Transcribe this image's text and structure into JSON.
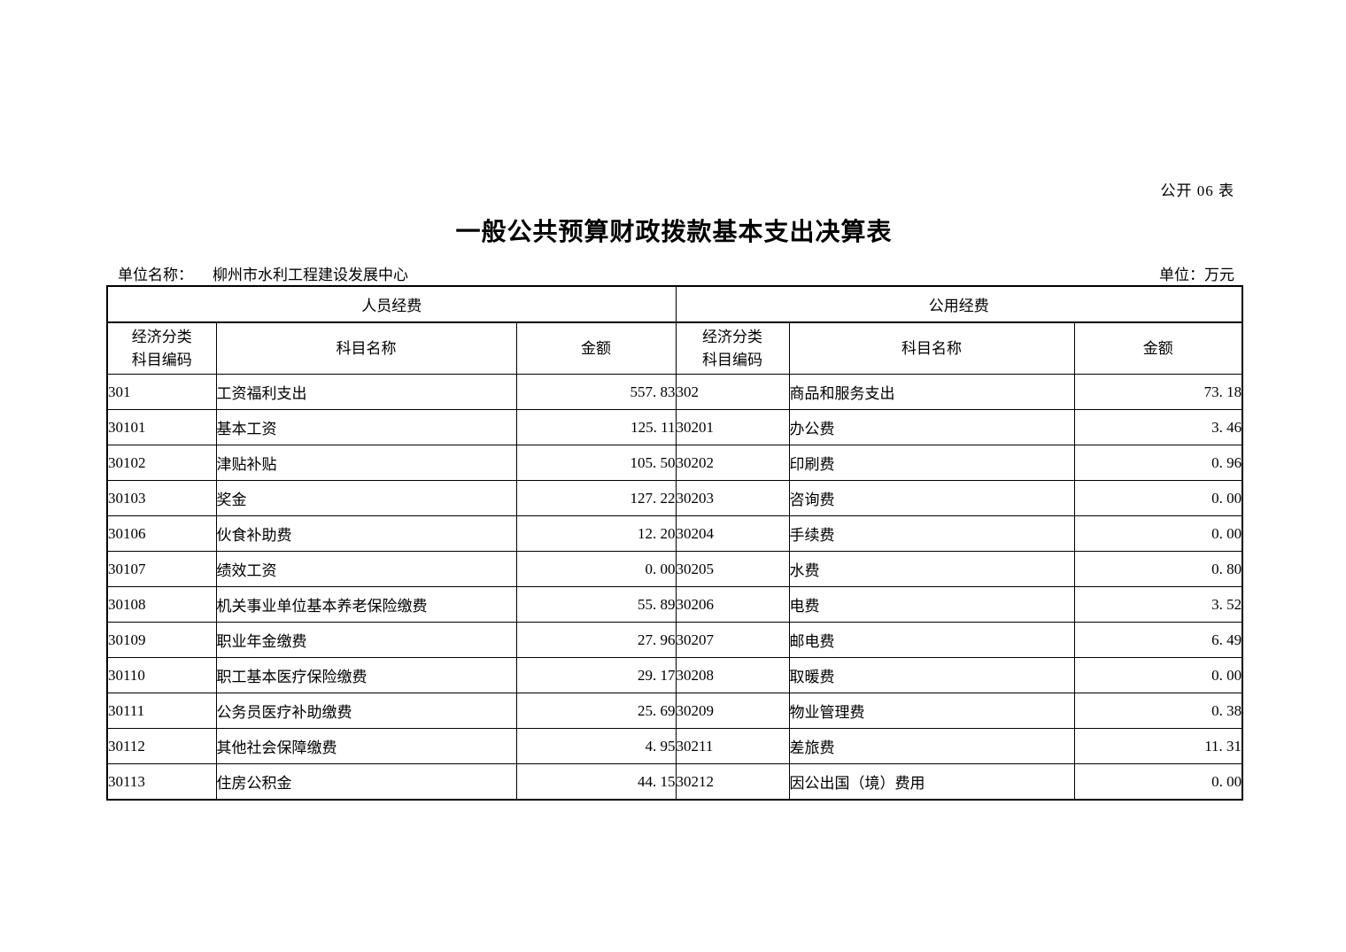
{
  "page": {
    "form_label": "公开 06 表",
    "title": "一般公共预算财政拨款基本支出决算表",
    "unit_name_label": "单位名称：",
    "unit_name_value": "柳州市水利工程建设发展中心",
    "unit_label": "单位：万元"
  },
  "table": {
    "groups": {
      "left": "人员经费",
      "right": "公用经费"
    },
    "headers": {
      "code_line1": "经济分类",
      "code_line2": "科目编码",
      "name": "科目名称",
      "amount": "金额"
    },
    "left_rows": [
      {
        "code": "301",
        "name": "工资福利支出",
        "amount": "557. 83"
      },
      {
        "code": "30101",
        "name": "基本工资",
        "amount": "125. 11"
      },
      {
        "code": "30102",
        "name": "津贴补贴",
        "amount": "105. 50"
      },
      {
        "code": "30103",
        "name": "奖金",
        "amount": "127. 22"
      },
      {
        "code": "30106",
        "name": "伙食补助费",
        "amount": "12. 20"
      },
      {
        "code": "30107",
        "name": "绩效工资",
        "amount": "0. 00"
      },
      {
        "code": "30108",
        "name": "机关事业单位基本养老保险缴费",
        "amount": "55. 89"
      },
      {
        "code": "30109",
        "name": "职业年金缴费",
        "amount": "27. 96"
      },
      {
        "code": "30110",
        "name": "职工基本医疗保险缴费",
        "amount": "29. 17"
      },
      {
        "code": "30111",
        "name": "公务员医疗补助缴费",
        "amount": "25. 69"
      },
      {
        "code": "30112",
        "name": "其他社会保障缴费",
        "amount": "4. 95"
      },
      {
        "code": "30113",
        "name": "住房公积金",
        "amount": "44. 15"
      }
    ],
    "right_rows": [
      {
        "code": "302",
        "name": "商品和服务支出",
        "amount": "73. 18"
      },
      {
        "code": "30201",
        "name": "办公费",
        "amount": "3. 46"
      },
      {
        "code": "30202",
        "name": "印刷费",
        "amount": "0. 96"
      },
      {
        "code": "30203",
        "name": "咨询费",
        "amount": "0. 00"
      },
      {
        "code": "30204",
        "name": "手续费",
        "amount": "0. 00"
      },
      {
        "code": "30205",
        "name": "水费",
        "amount": "0. 80"
      },
      {
        "code": "30206",
        "name": "电费",
        "amount": "3. 52"
      },
      {
        "code": "30207",
        "name": "邮电费",
        "amount": "6. 49"
      },
      {
        "code": "30208",
        "name": "取暖费",
        "amount": "0. 00"
      },
      {
        "code": "30209",
        "name": "物业管理费",
        "amount": "0. 38"
      },
      {
        "code": "30211",
        "name": "差旅费",
        "amount": "11. 31"
      },
      {
        "code": "30212",
        "name": "因公出国（境）费用",
        "amount": "0. 00"
      }
    ]
  }
}
